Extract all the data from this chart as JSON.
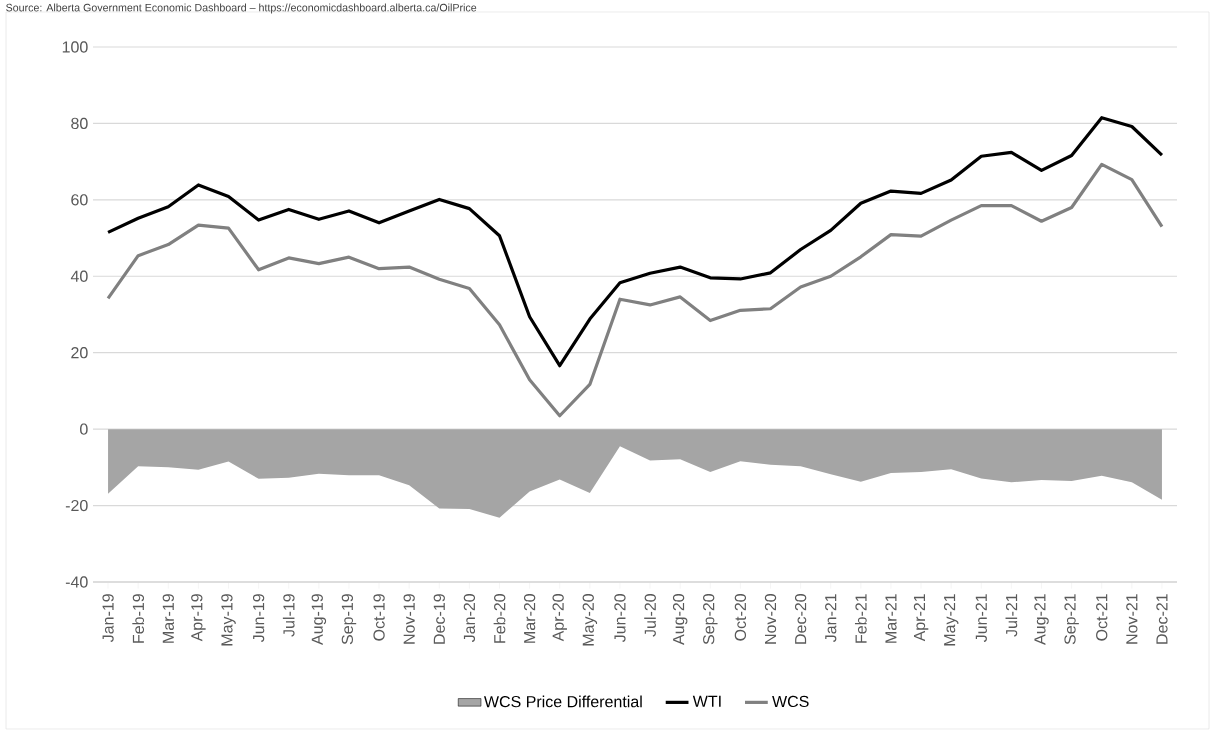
{
  "chart_data": {
    "type": "line",
    "annotations": [
      "Source: Alberta Government Economic Dashboard – https://economicdashboard.alberta.ca/OilPrice"
    ],
    "categories": [
      "Jan-19",
      "Feb-19",
      "Mar-19",
      "Apr-19",
      "May-19",
      "Jun-19",
      "Jul-19",
      "Aug-19",
      "Sep-19",
      "Oct-19",
      "Nov-19",
      "Dec-19",
      "Jan-20",
      "Feb-20",
      "Mar-20",
      "Apr-20",
      "May-20",
      "Jun-20",
      "Jul-20",
      "Aug-20",
      "Sep-20",
      "Oct-20",
      "Nov-20",
      "Dec-20",
      "Jan-21",
      "Feb-21",
      "Mar-21",
      "Apr-21",
      "May-21",
      "Jun-21",
      "Jul-21",
      "Aug-21",
      "Sep-21",
      "Oct-21",
      "Nov-21",
      "Dec-21"
    ],
    "series": [
      {
        "name": "WCS Price Differential",
        "type": "area",
        "color": "#a5a5a5",
        "values": [
          -16.9,
          -9.7,
          -10.0,
          -10.6,
          -8.5,
          -13.0,
          -12.7,
          -11.7,
          -12.1,
          -12.1,
          -14.7,
          -20.8,
          -20.9,
          -23.2,
          -16.3,
          -13.2,
          -16.7,
          -4.5,
          -8.2,
          -7.9,
          -11.2,
          -8.4,
          -9.3,
          -9.7,
          -11.8,
          -13.8,
          -11.5,
          -11.2,
          -10.5,
          -12.9,
          -13.9,
          -13.3,
          -13.6,
          -12.2,
          -13.9,
          -18.5
        ]
      },
      {
        "name": "WTI",
        "type": "line",
        "color": "#000000",
        "values": [
          51.5,
          55.2,
          58.2,
          63.9,
          60.9,
          54.7,
          57.5,
          54.9,
          57.1,
          54.0,
          57.1,
          60.1,
          57.7,
          50.6,
          29.4,
          16.6,
          28.8,
          38.3,
          40.8,
          42.4,
          39.6,
          39.3,
          40.9,
          47.0,
          52.0,
          59.1,
          62.3,
          61.7,
          65.2,
          71.4,
          72.4,
          67.7,
          71.6,
          81.5,
          79.2,
          71.7
        ]
      },
      {
        "name": "WCS",
        "type": "line",
        "color": "#808080",
        "values": [
          34.2,
          45.4,
          48.3,
          53.4,
          52.6,
          41.7,
          44.8,
          43.3,
          45.0,
          42.0,
          42.4,
          39.2,
          36.8,
          27.3,
          12.9,
          3.5,
          11.7,
          34.0,
          32.5,
          34.6,
          28.4,
          31.1,
          31.5,
          37.2,
          40.0,
          45.1,
          50.9,
          50.5,
          54.7,
          58.5,
          58.5,
          54.4,
          58.0,
          69.3,
          65.3,
          53.0
        ]
      }
    ],
    "ylim": [
      -40,
      100
    ],
    "yticks": [
      -40,
      -20,
      0,
      20,
      40,
      60,
      80,
      100
    ],
    "grid": "y",
    "legend": "bottom"
  }
}
